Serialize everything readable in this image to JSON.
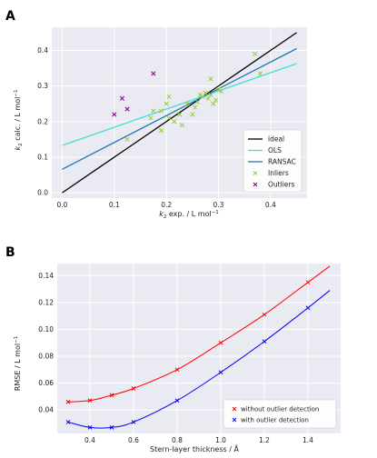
{
  "panels": {
    "a_letter": "A",
    "b_letter": "B"
  },
  "chart_data": [
    {
      "type": "scatter",
      "panel": "A",
      "xlabel": "k_2 exp.  / L mol^-1",
      "ylabel": "k_2 calc.  / L mol^-1",
      "xlim": [
        -0.02,
        0.47
      ],
      "ylim": [
        -0.015,
        0.465
      ],
      "xticks": [
        0.0,
        0.1,
        0.2,
        0.3,
        0.4
      ],
      "yticks": [
        0.0,
        0.1,
        0.2,
        0.3,
        0.4
      ],
      "tick_labels_x": [
        "0.0",
        "0.1",
        "0.2",
        "0.3",
        "0.4"
      ],
      "tick_labels_y": [
        "0.0",
        "0.1",
        "0.2",
        "0.3",
        "0.4"
      ],
      "grid": true,
      "legend_position": "lower-right",
      "lines": [
        {
          "name": "ideal",
          "color": "#000000",
          "x": [
            0.0,
            0.45
          ],
          "y": [
            0.0,
            0.45
          ]
        },
        {
          "name": "OLS",
          "color": "#40e0d0",
          "x": [
            0.0,
            0.45
          ],
          "y": [
            0.133,
            0.363
          ]
        },
        {
          "name": "RANSAC",
          "color": "#1f77b4",
          "x": [
            0.0,
            0.45
          ],
          "y": [
            0.066,
            0.405
          ]
        }
      ],
      "series": [
        {
          "name": "Inliers",
          "color": "#9acd32",
          "marker": "x",
          "points": [
            [
              0.125,
              0.15
            ],
            [
              0.17,
              0.21
            ],
            [
              0.19,
              0.23
            ],
            [
              0.2,
              0.25
            ],
            [
              0.205,
              0.27
            ],
            [
              0.205,
              0.21
            ],
            [
              0.215,
              0.2
            ],
            [
              0.225,
              0.22
            ],
            [
              0.23,
              0.19
            ],
            [
              0.24,
              0.25
            ],
            [
              0.25,
              0.22
            ],
            [
              0.26,
              0.255
            ],
            [
              0.265,
              0.275
            ],
            [
              0.27,
              0.27
            ],
            [
              0.275,
              0.28
            ],
            [
              0.28,
              0.265
            ],
            [
              0.285,
              0.32
            ],
            [
              0.29,
              0.25
            ],
            [
              0.295,
              0.26
            ],
            [
              0.3,
              0.29
            ],
            [
              0.305,
              0.285
            ],
            [
              0.175,
              0.23
            ],
            [
              0.19,
              0.175
            ],
            [
              0.37,
              0.39
            ],
            [
              0.38,
              0.335
            ],
            [
              0.255,
              0.24
            ],
            [
              0.285,
              0.275
            ]
          ]
        },
        {
          "name": "Outliers",
          "color": "#800080",
          "marker": "x",
          "points": [
            [
              0.1,
              0.22
            ],
            [
              0.115,
              0.265
            ],
            [
              0.125,
              0.235
            ],
            [
              0.175,
              0.335
            ]
          ]
        }
      ],
      "legend": [
        "ideal",
        "OLS",
        "RANSAC",
        "Inliers",
        "Outliers"
      ]
    },
    {
      "type": "line",
      "panel": "B",
      "xlabel": "Stern-layer thickness / Å",
      "ylabel": "RMSE / L mol^-1",
      "xlim": [
        0.25,
        1.55
      ],
      "ylim": [
        0.0225,
        0.149
      ],
      "xticks": [
        0.4,
        0.6,
        0.8,
        1.0,
        1.2,
        1.4
      ],
      "yticks": [
        0.04,
        0.06,
        0.08,
        0.1,
        0.12,
        0.14
      ],
      "tick_labels_x": [
        "0.4",
        "0.6",
        "0.8",
        "1.0",
        "1.2",
        "1.4"
      ],
      "tick_labels_y": [
        "0.04",
        "0.06",
        "0.08",
        "0.10",
        "0.12",
        "0.14"
      ],
      "grid": true,
      "legend_position": "lower-right",
      "series": [
        {
          "name": "without outlier detection",
          "color": "#ff0000",
          "points": [
            [
              0.3,
              0.046
            ],
            [
              0.4,
              0.047
            ],
            [
              0.5,
              0.051
            ],
            [
              0.6,
              0.056
            ],
            [
              0.8,
              0.07
            ],
            [
              1.0,
              0.09
            ],
            [
              1.2,
              0.111
            ],
            [
              1.4,
              0.135
            ]
          ],
          "curve_end": [
            1.5,
            0.147
          ]
        },
        {
          "name": "with outlier detection",
          "color": "#0000ff",
          "points": [
            [
              0.3,
              0.031
            ],
            [
              0.4,
              0.027
            ],
            [
              0.5,
              0.027
            ],
            [
              0.6,
              0.031
            ],
            [
              0.8,
              0.047
            ],
            [
              1.0,
              0.068
            ],
            [
              1.2,
              0.091
            ],
            [
              1.4,
              0.116
            ]
          ],
          "curve_end": [
            1.5,
            0.129
          ]
        }
      ],
      "legend": [
        "without outlier detection",
        "with outlier detection"
      ]
    }
  ]
}
